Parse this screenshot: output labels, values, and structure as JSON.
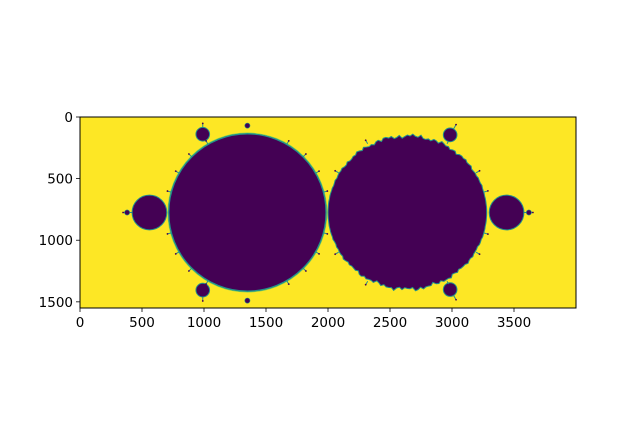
{
  "chart_data": {
    "type": "heatmap",
    "title": "",
    "xlabel": "",
    "ylabel": "",
    "xlim": [
      0,
      4000
    ],
    "ylim": [
      1550,
      0
    ],
    "x_ticks": [
      0,
      500,
      1000,
      1500,
      2000,
      2500,
      3000,
      3500
    ],
    "y_ticks": [
      0,
      500,
      1000,
      1500
    ],
    "x_tick_labels": [
      "0",
      "500",
      "1000",
      "1500",
      "2000",
      "2500",
      "3000",
      "3500"
    ],
    "y_tick_labels": [
      "0",
      "500",
      "1000",
      "1500"
    ],
    "grid": false,
    "legend": "none",
    "colormap": "viridis",
    "colors": {
      "background": "#fde725",
      "set_interior": "#440154",
      "boundary_teal": "#21918c",
      "boundary_green": "#5ec962"
    },
    "regions": [
      {
        "name": "left main disc",
        "value": "low",
        "center": [
          1350,
          775
        ],
        "radius": 635
      },
      {
        "name": "right main disc",
        "value": "low",
        "center": [
          2640,
          775
        ],
        "radius": 640,
        "edge": "fractal"
      },
      {
        "name": "left satellite disc",
        "value": "low",
        "center": [
          560,
          775
        ],
        "radius": 140
      },
      {
        "name": "right satellite disc",
        "value": "low",
        "center": [
          3440,
          775
        ],
        "radius": 140
      },
      {
        "name": "top-left bulb",
        "value": "low",
        "center": [
          990,
          140
        ],
        "radius": 55
      },
      {
        "name": "bottom-left bulb",
        "value": "low",
        "center": [
          990,
          1405
        ],
        "radius": 55
      },
      {
        "name": "top-right bulb",
        "value": "low",
        "center": [
          2985,
          145
        ],
        "radius": 55
      },
      {
        "name": "bottom-right bulb",
        "value": "low",
        "center": [
          2985,
          1400
        ],
        "radius": 55
      }
    ]
  }
}
